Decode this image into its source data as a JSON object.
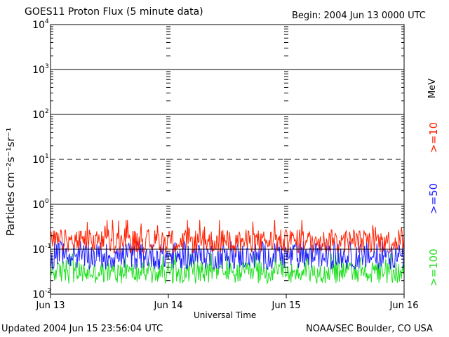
{
  "chart_data": {
    "type": "line",
    "title": "GOES11 Proton Flux (5 minute data)",
    "begin": "Begin: 2004 Jun 13 0000 UTC",
    "ylabel": "Particles cm⁻²s⁻¹sr⁻¹",
    "xlabel": "Universal Time",
    "yscale": "log",
    "ylim": [
      0.01,
      10000
    ],
    "ytick_labels": [
      {
        "base": "10",
        "exp": "-2",
        "value": 0.01
      },
      {
        "base": "10",
        "exp": "-1",
        "value": 0.1
      },
      {
        "base": "10",
        "exp": "0",
        "value": 1
      },
      {
        "base": "10",
        "exp": "1",
        "value": 10
      },
      {
        "base": "10",
        "exp": "2",
        "value": 100
      },
      {
        "base": "10",
        "exp": "3",
        "value": 1000
      },
      {
        "base": "10",
        "exp": "4",
        "value": 10000
      }
    ],
    "x_categories": [
      "Jun 13",
      "Jun 14",
      "Jun 15",
      "Jun 16"
    ],
    "threshold_lines": [
      {
        "value": 10,
        "style": "dashed"
      },
      {
        "value": 0.1,
        "style": "solid"
      }
    ],
    "unit_label": "MeV",
    "series": [
      {
        "name": ">=10",
        "color": "#ff2000",
        "typical": 0.15,
        "min": 0.07,
        "max": 0.45
      },
      {
        "name": ">=50",
        "color": "#2020ff",
        "typical": 0.07,
        "min": 0.03,
        "max": 0.15
      },
      {
        "name": ">=100",
        "color": "#20e020",
        "typical": 0.03,
        "min": 0.015,
        "max": 0.08
      }
    ],
    "grid": true
  },
  "footer": {
    "updated": "Updated 2004 Jun 15 23:56:04 UTC",
    "source": "NOAA/SEC Boulder, CO USA"
  }
}
